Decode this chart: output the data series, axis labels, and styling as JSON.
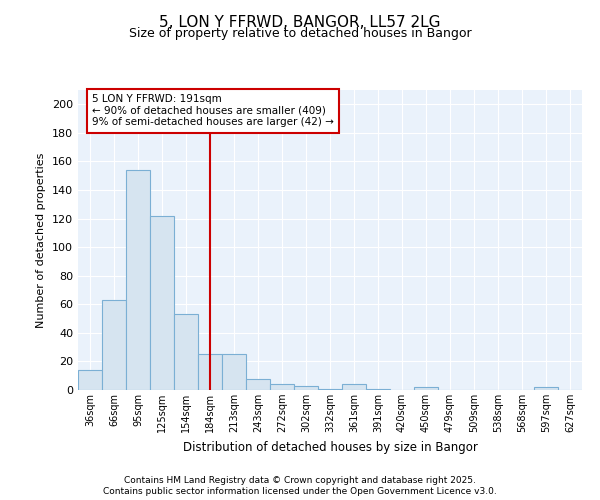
{
  "title": "5, LON Y FFRWD, BANGOR, LL57 2LG",
  "subtitle": "Size of property relative to detached houses in Bangor",
  "xlabel": "Distribution of detached houses by size in Bangor",
  "ylabel": "Number of detached properties",
  "bar_labels": [
    "36sqm",
    "66sqm",
    "95sqm",
    "125sqm",
    "154sqm",
    "184sqm",
    "213sqm",
    "243sqm",
    "272sqm",
    "302sqm",
    "332sqm",
    "361sqm",
    "391sqm",
    "420sqm",
    "450sqm",
    "479sqm",
    "509sqm",
    "538sqm",
    "568sqm",
    "597sqm",
    "627sqm"
  ],
  "bar_values": [
    14,
    63,
    154,
    122,
    53,
    25,
    25,
    8,
    4,
    3,
    1,
    4,
    1,
    0,
    2,
    0,
    0,
    0,
    0,
    2,
    0
  ],
  "bar_color": "#d6e4f0",
  "bar_edge_color": "#7bafd4",
  "vline_x": 5,
  "vline_color": "#cc0000",
  "annotation_text": "5 LON Y FFRWD: 191sqm\n← 90% of detached houses are smaller (409)\n9% of semi-detached houses are larger (42) →",
  "annotation_box_color": "#ffffff",
  "annotation_box_edge": "#cc0000",
  "ylim": [
    0,
    210
  ],
  "yticks": [
    0,
    20,
    40,
    60,
    80,
    100,
    120,
    140,
    160,
    180,
    200
  ],
  "footer_line1": "Contains HM Land Registry data © Crown copyright and database right 2025.",
  "footer_line2": "Contains public sector information licensed under the Open Government Licence v3.0.",
  "bg_color": "#ffffff",
  "plot_bg_color": "#eaf2fb"
}
